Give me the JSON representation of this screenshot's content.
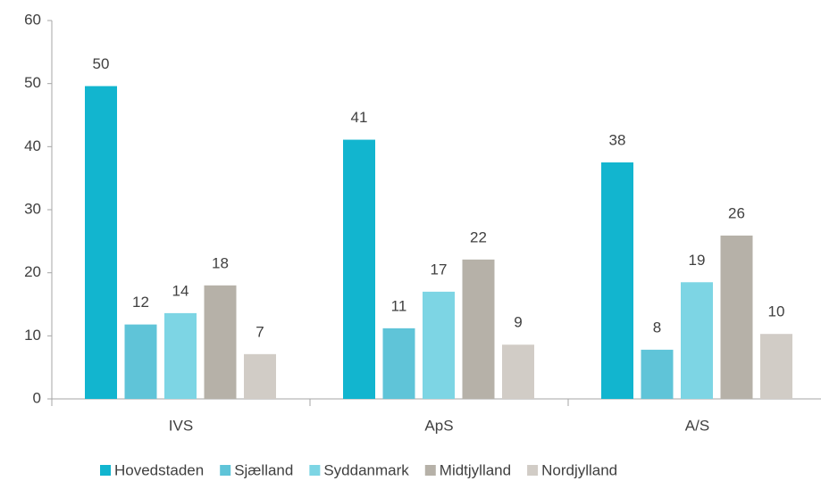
{
  "chart_data": {
    "type": "bar",
    "categories": [
      "IVS",
      "ApS",
      "A/S"
    ],
    "series": [
      {
        "name": "Hovedstaden",
        "color": "#12b5cf",
        "values": [
          49.6,
          41.1,
          37.5
        ],
        "value_labels": [
          "50",
          "41",
          "38"
        ]
      },
      {
        "name": "Sjælland",
        "color": "#5fc4d8",
        "values": [
          11.8,
          11.2,
          7.8
        ],
        "value_labels": [
          "12",
          "11",
          "8"
        ]
      },
      {
        "name": "Syddanmark",
        "color": "#7dd5e4",
        "values": [
          13.6,
          17.0,
          18.5
        ],
        "value_labels": [
          "14",
          "17",
          "19"
        ]
      },
      {
        "name": "Midtjylland",
        "color": "#b6b1a8",
        "values": [
          18.0,
          22.1,
          25.9
        ],
        "value_labels": [
          "18",
          "22",
          "26"
        ]
      },
      {
        "name": "Nordjylland",
        "color": "#d1ccc6",
        "values": [
          7.1,
          8.6,
          10.3
        ],
        "value_labels": [
          "7",
          "9",
          "10"
        ]
      }
    ],
    "ylim": [
      0,
      60
    ],
    "yticks": [
      0,
      10,
      20,
      30,
      40,
      50,
      60
    ],
    "legend": "bottom"
  }
}
